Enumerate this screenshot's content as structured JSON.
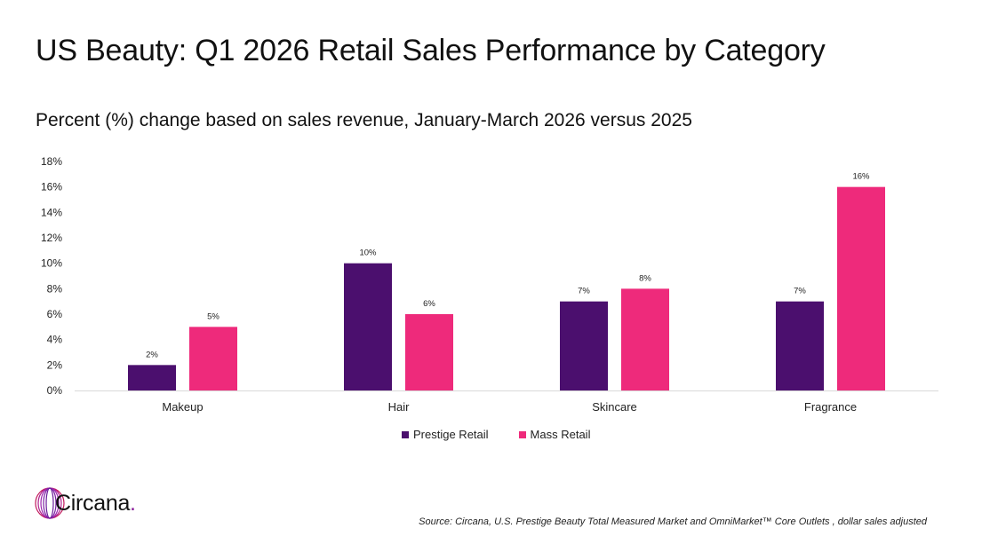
{
  "header": {
    "title": "US Beauty: Q1 2026 Retail Sales Performance by Category",
    "subtitle": "Percent (%) change based on sales revenue, January-March 2026 versus 2025"
  },
  "chart_data": {
    "type": "bar",
    "title": "",
    "xlabel": "",
    "ylabel": "",
    "categories": [
      "Makeup",
      "Hair",
      "Skincare",
      "Fragrance"
    ],
    "series": [
      {
        "name": "Prestige Retail",
        "values": [
          2,
          10,
          7,
          7
        ],
        "labels": [
          "2%",
          "10%",
          "7%",
          "7%"
        ],
        "color": "#4b0f6e"
      },
      {
        "name": "Mass Retail",
        "values": [
          5,
          6,
          8,
          16
        ],
        "labels": [
          "5%",
          "6%",
          "8%",
          "16%"
        ],
        "color": "#ee2a7b"
      }
    ],
    "ylim": [
      0,
      18
    ],
    "yticks": [
      "0%",
      "2%",
      "4%",
      "6%",
      "8%",
      "10%",
      "12%",
      "14%",
      "16%",
      "18%"
    ],
    "grid": false,
    "legend_position": "bottom"
  },
  "logo": {
    "text": "Circana",
    "dot": "."
  },
  "source": "Source: Circana, U.S. Prestige Beauty Total Measured Market and OmniMarket™ Core Outlets , dollar sales adjusted"
}
